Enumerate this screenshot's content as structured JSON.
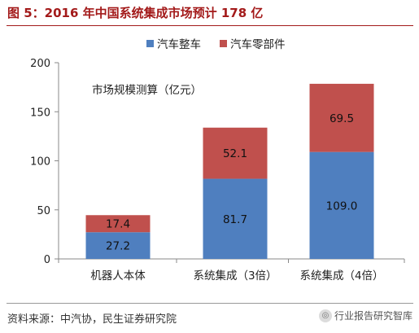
{
  "figure": {
    "title": "图 5：2016 年中国系统集成市场预计 178 亿",
    "source": "资料来源：中汽协，民生证券研究院",
    "watermark": "行业报告研究智库"
  },
  "colors": {
    "title": "#a31a1a",
    "vehicle": "#4f7fbf",
    "parts": "#c0504d"
  },
  "icons": {
    "watermark": "wechat-icon"
  },
  "chart_data": {
    "type": "bar",
    "stacked": true,
    "subtitle": "市场规模测算（亿元）",
    "categories": [
      "机器人本体",
      "系统集成（3倍）",
      "系统集成（4倍）"
    ],
    "series": [
      {
        "name": "汽车整车",
        "color": "#4f7fbf",
        "values": [
          27.2,
          81.7,
          109.0
        ],
        "labels": [
          "27.2",
          "81.7",
          "109.0"
        ]
      },
      {
        "name": "汽车零部件",
        "color": "#c0504d",
        "values": [
          17.4,
          52.1,
          69.5
        ],
        "labels": [
          "17.4",
          "52.1",
          "69.5"
        ]
      }
    ],
    "ylim": [
      0,
      200
    ],
    "yticks": [
      0,
      50,
      100,
      150,
      200
    ],
    "xlabel": "",
    "ylabel": "",
    "grid": false,
    "legend_position": "top-right"
  }
}
